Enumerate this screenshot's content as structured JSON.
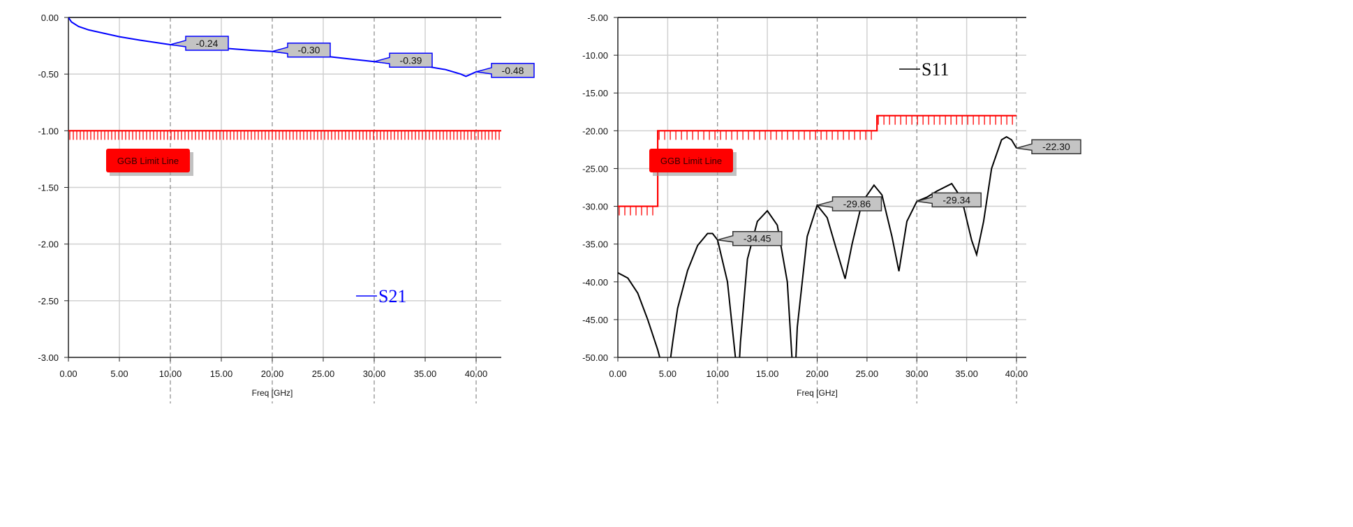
{
  "chart_data": [
    {
      "type": "line",
      "xlabel": "Freq [GHz]",
      "ylabel": "",
      "xlim": [
        0,
        42.5
      ],
      "ylim": [
        -3.0,
        0.0
      ],
      "xticks": [
        "0.00",
        "5.00",
        "10.00",
        "15.00",
        "20.00",
        "25.00",
        "30.00",
        "35.00",
        "40.00"
      ],
      "yticks": [
        "0.00",
        "-0.50",
        "-1.00",
        "-1.50",
        "-2.00",
        "-2.50",
        "-3.00"
      ],
      "grid": true,
      "legend_position": "bottom-right",
      "series": [
        {
          "name": "S21",
          "color": "#0000ff",
          "x": [
            0,
            0.3,
            1,
            2,
            3,
            5,
            7,
            10,
            12,
            15,
            18,
            20,
            22,
            25,
            28,
            30,
            32,
            35,
            37,
            38.5,
            39,
            39.5,
            40,
            41,
            42.5
          ],
          "y": [
            0,
            -0.04,
            -0.08,
            -0.11,
            -0.13,
            -0.17,
            -0.2,
            -0.24,
            -0.25,
            -0.27,
            -0.29,
            -0.3,
            -0.32,
            -0.34,
            -0.37,
            -0.39,
            -0.41,
            -0.43,
            -0.46,
            -0.5,
            -0.52,
            -0.5,
            -0.48,
            -0.46,
            -0.44
          ]
        }
      ],
      "limit_line": {
        "label": "GGB Limit Line",
        "color": "#ff0000",
        "segments": [
          {
            "x": [
              0,
              42.5
            ],
            "y": -1.0
          }
        ]
      },
      "markers": [
        {
          "x": 10,
          "y": -0.24,
          "label": "-0.24"
        },
        {
          "x": 20,
          "y": -0.3,
          "label": "-0.30"
        },
        {
          "x": 30,
          "y": -0.39,
          "label": "-0.39"
        },
        {
          "x": 40,
          "y": -0.48,
          "label": "-0.48"
        }
      ]
    },
    {
      "type": "line",
      "xlabel": "Freq [GHz]",
      "ylabel": "",
      "xlim": [
        0,
        41
      ],
      "ylim": [
        -50.0,
        -5.0
      ],
      "xticks": [
        "0.00",
        "5.00",
        "10.00",
        "15.00",
        "20.00",
        "25.00",
        "30.00",
        "35.00",
        "40.00"
      ],
      "yticks": [
        "-5.00",
        "-10.00",
        "-15.00",
        "-20.00",
        "-25.00",
        "-30.00",
        "-35.00",
        "-40.00",
        "-45.00",
        "-50.00"
      ],
      "grid": true,
      "legend_position": "top-right",
      "series": [
        {
          "name": "S11",
          "color": "#000000",
          "x": [
            0,
            1,
            2,
            3,
            4,
            4.6,
            5,
            5.5,
            6,
            7,
            8,
            9,
            9.5,
            10,
            11,
            11.8,
            12,
            12.3,
            13,
            14,
            15,
            16,
            17,
            17.7,
            18,
            19,
            20,
            21,
            22,
            22.8,
            23.5,
            24.5,
            25.7,
            26.5,
            27.5,
            28.2,
            29,
            30,
            31,
            32,
            33.5,
            34.5,
            35.5,
            36,
            36.7,
            37.5,
            38.5,
            39,
            39.5,
            40
          ],
          "y": [
            -38.8,
            -39.5,
            -41.5,
            -45,
            -49,
            -52,
            -53,
            -48,
            -43.5,
            -38.5,
            -35.2,
            -33.6,
            -33.6,
            -34.45,
            -40,
            -50,
            -55,
            -48,
            -37,
            -32,
            -30.6,
            -32.5,
            -40,
            -55,
            -46,
            -34,
            -29.86,
            -31.5,
            -36,
            -39.6,
            -35,
            -29.5,
            -27.2,
            -28.5,
            -34,
            -38.6,
            -32,
            -29.34,
            -28.8,
            -28,
            -27,
            -29,
            -34.5,
            -36.4,
            -32,
            -25,
            -21.2,
            -20.8,
            -21.2,
            -22.3
          ]
        }
      ],
      "limit_line": {
        "label": "GGB Limit Line",
        "color": "#ff0000",
        "segments": [
          {
            "x": [
              0,
              4
            ],
            "y": -30.0
          },
          {
            "x": [
              4,
              26
            ],
            "y": -20.0
          },
          {
            "x": [
              26,
              40
            ],
            "y": -18.0
          }
        ]
      },
      "markers": [
        {
          "x": 10,
          "y": -34.45,
          "label": "-34.45"
        },
        {
          "x": 20,
          "y": -29.86,
          "label": "-29.86"
        },
        {
          "x": 30,
          "y": -29.34,
          "label": "-29.34"
        },
        {
          "x": 40,
          "y": -22.3,
          "label": "-22.30"
        }
      ]
    }
  ]
}
